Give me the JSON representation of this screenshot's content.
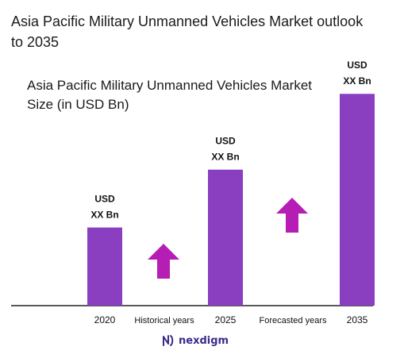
{
  "title": "Asia Pacific Military Unmanned Vehicles Market outlook to 2035",
  "brand": {
    "name": "nexdigm",
    "logo_icon": "nexdigm-logo-icon"
  },
  "colors": {
    "bar": "#8A3FC0",
    "arrow": "#B51DB5",
    "axis": "#222222"
  },
  "chart_data": {
    "type": "bar",
    "title": "Asia Pacific Military Unmanned Vehicles Market Size (in USD Bn)",
    "categories": [
      "2020",
      "2025",
      "2035"
    ],
    "values": [
      1.0,
      1.74,
      2.71
    ],
    "value_labels": [
      "USD\nXX Bn",
      "USD\nXX Bn",
      "USD\nXX Bn"
    ],
    "period_labels": [
      "Historical years",
      "Forecasted years"
    ],
    "period_arrows": [
      "up-arrow-icon",
      "up-arrow-icon"
    ],
    "ylim": [
      0,
      3.2
    ],
    "grid": false,
    "legend": "none"
  }
}
